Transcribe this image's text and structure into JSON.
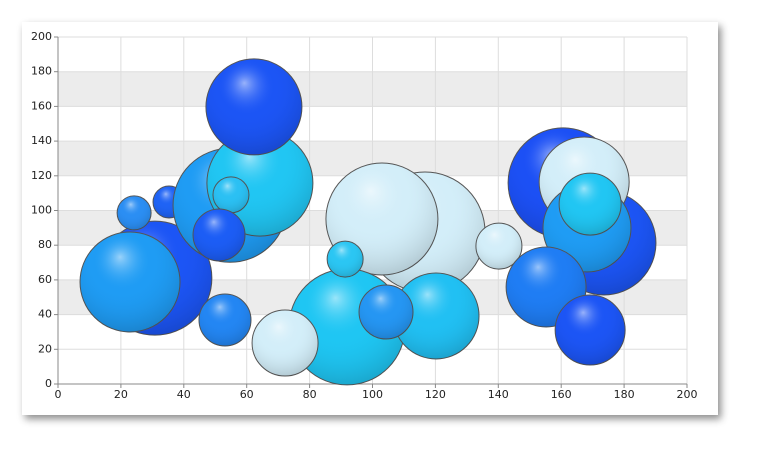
{
  "chart_data": {
    "type": "bubble",
    "x": [
      30.8,
      22.9,
      24.2,
      35.3,
      54.7,
      64.2,
      55,
      51.2,
      62.3,
      53.1,
      116.7,
      103,
      91.9,
      72.2,
      91.3,
      120.2,
      104.3,
      140.2,
      160.6,
      173.6,
      167.3,
      168.2,
      169.2,
      155.2,
      169.2
    ],
    "values": [
      61,
      58.8,
      98.6,
      104.9,
      103,
      115.8,
      109,
      85.9,
      159.7,
      36.9,
      87.6,
      95.1,
      32.9,
      23.6,
      72,
      39.2,
      41.5,
      79.5,
      115.9,
      81.3,
      116.4,
      89.9,
      103.7,
      55.9,
      31.1
    ],
    "sizes": [
      57,
      50,
      17,
      16,
      57,
      53,
      18,
      26,
      48,
      26,
      60,
      56,
      58,
      33,
      18,
      43,
      27,
      23,
      55,
      52,
      45,
      44,
      31,
      40,
      35
    ],
    "colors": [
      "#1c55f5",
      "#1f9cf4",
      "#2b8ef3",
      "#1f63f5",
      "#1f9cf4",
      "#21c6f3",
      "#2bc0f3",
      "#1c5df5",
      "#1c55f5",
      "#2386f3",
      "#d3eef9",
      "#d3eef9",
      "#1fc6f3",
      "#d3eef9",
      "#2bc6f3",
      "#21c0f3",
      "#2596f3",
      "#d3eef9",
      "#1c50f5",
      "#1c55f5",
      "#d3eef9",
      "#1f9cf4",
      "#21c6f3",
      "#1f7df4",
      "#1c55f5"
    ],
    "xlim": [
      0,
      200
    ],
    "xticks": [
      0,
      20,
      40,
      60,
      80,
      100,
      120,
      140,
      160,
      180,
      200
    ],
    "ylim": [
      0,
      200
    ],
    "yticks": [
      0,
      20,
      40,
      60,
      80,
      100,
      120,
      140,
      160,
      180,
      200
    ],
    "grid": true
  }
}
